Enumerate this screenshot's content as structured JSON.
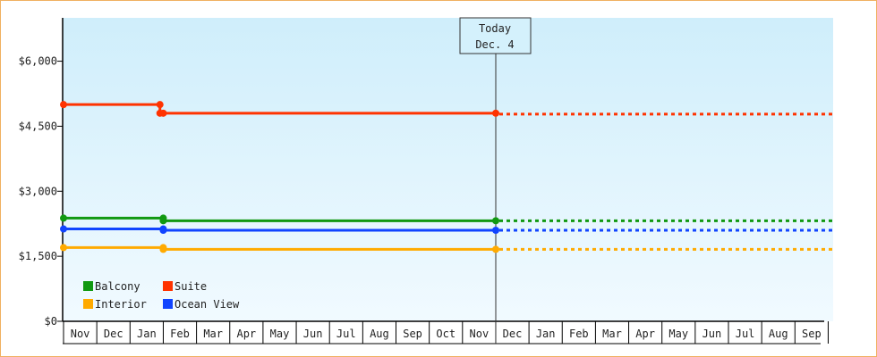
{
  "chart_data": {
    "type": "line",
    "title": "",
    "xlabel": "",
    "ylabel": "",
    "ylim": [
      0,
      7000
    ],
    "yticks": [
      0,
      1500,
      3000,
      4500,
      6000
    ],
    "ytick_labels": [
      "$0",
      "$1,500",
      "$3,000",
      "$4,500",
      "$6,000"
    ],
    "x_months": [
      "Nov",
      "Dec",
      "Jan",
      "Feb",
      "Mar",
      "Apr",
      "May",
      "Jun",
      "Jul",
      "Aug",
      "Sep",
      "Oct",
      "Nov",
      "Dec",
      "Jan",
      "Feb",
      "Mar",
      "Apr",
      "May",
      "Jun",
      "Jul",
      "Aug",
      "Sep"
    ],
    "today": {
      "line1": "Today",
      "line2": "Dec. 4"
    },
    "legend_placement": "bottom-left",
    "series": [
      {
        "name": "Suite",
        "color": "#ff3300",
        "points": [
          [
            "Nov 1",
            5000
          ],
          [
            "Jan 28",
            5000
          ],
          [
            "Jan 28",
            4800
          ],
          [
            "Feb 1",
            4800
          ],
          [
            "Dec 4",
            4800
          ]
        ],
        "projected_value": 4780
      },
      {
        "name": "Balcony",
        "color": "#119911",
        "points": [
          [
            "Nov 1",
            2380
          ],
          [
            "Feb 1",
            2380
          ],
          [
            "Feb 1",
            2320
          ],
          [
            "Dec 4",
            2320
          ]
        ],
        "projected_value": 2320
      },
      {
        "name": "Ocean View",
        "color": "#1144ff",
        "points": [
          [
            "Nov 1",
            2130
          ],
          [
            "Feb 1",
            2130
          ],
          [
            "Feb 1",
            2100
          ],
          [
            "Dec 4",
            2100
          ]
        ],
        "projected_value": 2100
      },
      {
        "name": "Interior",
        "color": "#ffaa00",
        "points": [
          [
            "Nov 1",
            1700
          ],
          [
            "Feb 1",
            1700
          ],
          [
            "Feb 1",
            1660
          ],
          [
            "Dec 4",
            1660
          ]
        ],
        "projected_value": 1660
      }
    ],
    "legend": [
      {
        "name": "Balcony",
        "color": "#119911"
      },
      {
        "name": "Suite",
        "color": "#ff3300"
      },
      {
        "name": "Interior",
        "color": "#ffaa00"
      },
      {
        "name": "Ocean View",
        "color": "#1144ff"
      }
    ]
  }
}
